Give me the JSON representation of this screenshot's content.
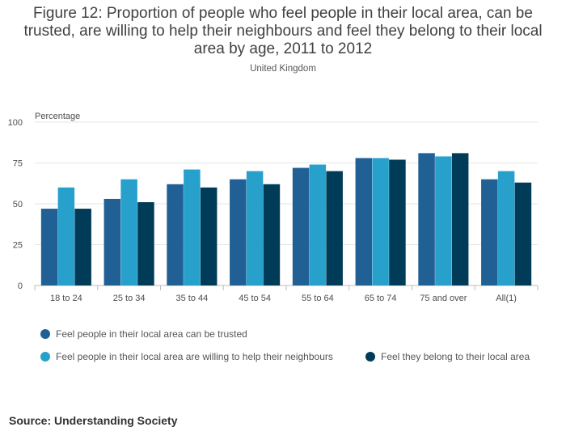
{
  "header": {
    "title": "Figure 12: Proportion of people who feel people in their local area, can be trusted, are willing to help their neighbours and feel they belong to their local area by age, 2011 to 2012",
    "subtitle": "United Kingdom"
  },
  "footer": {
    "source": "Source: Understanding Society"
  },
  "chart_data": {
    "type": "bar",
    "title": "Figure 12: Proportion of people who feel people in their local area, can be trusted, are willing to help their neighbours and feel they belong to their local area by age, 2011 to 2012",
    "subtitle": "United Kingdom",
    "ylabel": "Percentage",
    "xlabel": "",
    "ylim": [
      0,
      100
    ],
    "yticks": [
      0,
      25,
      50,
      75,
      100
    ],
    "grid": true,
    "legend_position": "bottom",
    "categories": [
      "18 to 24",
      "25 to 34",
      "35 to 44",
      "45 to 54",
      "55 to 64",
      "65 to 74",
      "75 and over",
      "All(1)"
    ],
    "series": [
      {
        "name": "Feel people in their local area can be trusted",
        "color": "#206095",
        "values": [
          47,
          53,
          62,
          65,
          72,
          78,
          81,
          65
        ]
      },
      {
        "name": "Feel people in their local area are willing to help their neighbours",
        "color": "#27a0cc",
        "values": [
          60,
          65,
          71,
          70,
          74,
          78,
          79,
          70
        ]
      },
      {
        "name": "Feel they belong to their local area",
        "color": "#003c57",
        "values": [
          47,
          51,
          60,
          62,
          70,
          77,
          81,
          63
        ]
      }
    ]
  }
}
